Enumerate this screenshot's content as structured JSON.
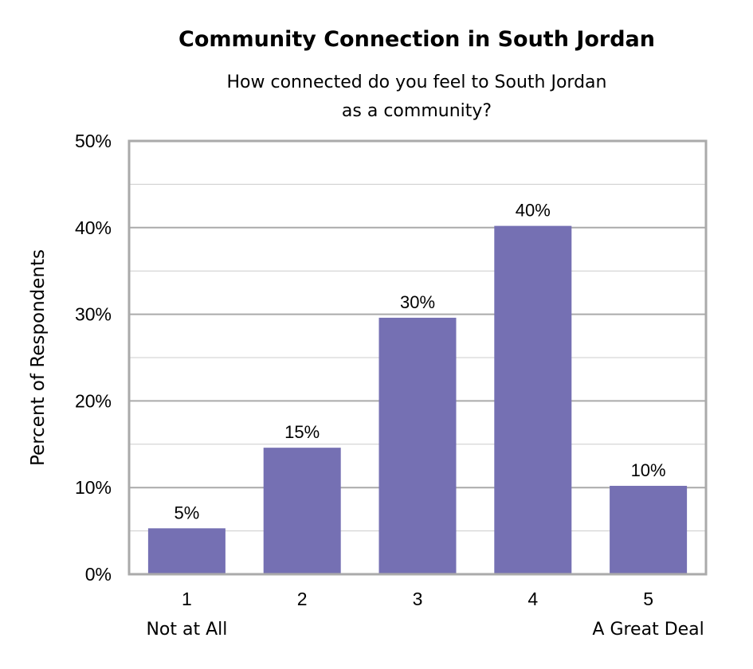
{
  "chart_data": {
    "type": "bar",
    "title": "Community Connection in South Jordan",
    "subtitle": [
      "How connected do you feel to South Jordan",
      "as a community?"
    ],
    "ylabel": "Percent of Respondents",
    "xlabel": "",
    "categories": [
      "1",
      "2",
      "3",
      "4",
      "5"
    ],
    "category_sublabels": [
      "Not at All",
      "",
      "",
      "",
      "A Great Deal"
    ],
    "values": [
      5.3,
      14.6,
      29.6,
      40.2,
      10.2
    ],
    "data_labels": [
      "5%",
      "15%",
      "30%",
      "40%",
      "10%"
    ],
    "ylim": [
      0,
      50
    ],
    "yticks": [
      "0%",
      "10%",
      "20%",
      "30%",
      "40%",
      "50%"
    ],
    "grid": true,
    "bar_color": "#7570b3",
    "grid_color": "#aaaaaa"
  }
}
